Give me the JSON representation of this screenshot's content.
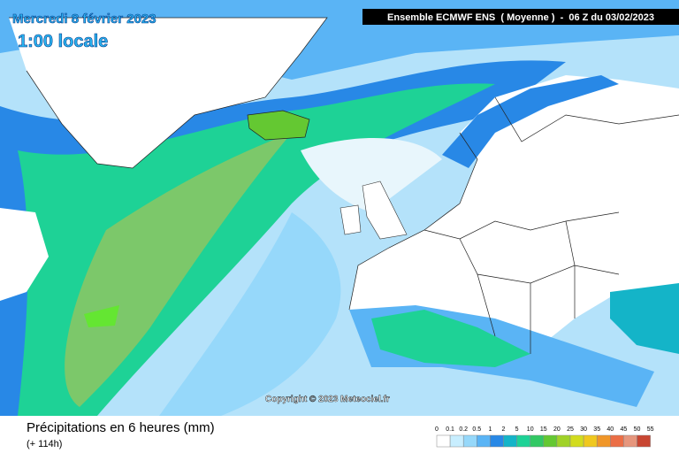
{
  "header": {
    "date": "Mercredi 8 février 2023",
    "time": "1:00 locale",
    "model": "Ensemble ECMWF ENS  ( Moyenne )  -  06 Z du 03/02/2023"
  },
  "copyright": "Copyright © 2023 Meteociel.fr",
  "footer": {
    "title": "Précipitations en 6 heures (mm)",
    "lead": "(+ 114h)"
  },
  "legend": {
    "labels": [
      0,
      0.1,
      0.2,
      0.5,
      1,
      2,
      5,
      10,
      15,
      20,
      25,
      30,
      35,
      40,
      45,
      50,
      55
    ],
    "colors": [
      "#ffffff",
      "#c8eeff",
      "#96d8fa",
      "#5ab4f5",
      "#2888e6",
      "#14b4c8",
      "#1ed296",
      "#32c864",
      "#64c832",
      "#a0d228",
      "#d2dc1e",
      "#f0c81e",
      "#f09628",
      "#eb6e46",
      "#e6967d",
      "#c84632"
    ]
  }
}
